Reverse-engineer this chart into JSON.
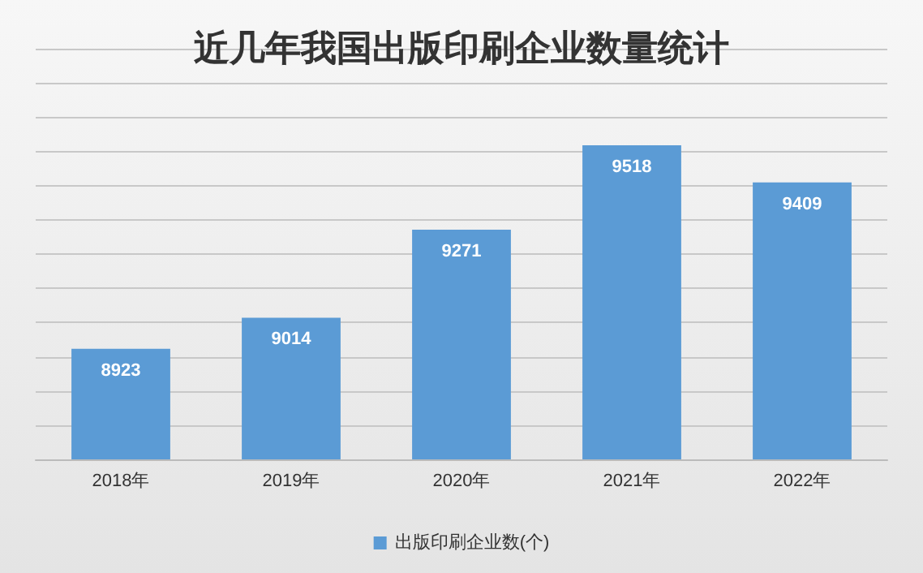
{
  "chart_data": {
    "type": "bar",
    "title": "近几年我国出版印刷企业数量统计",
    "categories": [
      "2018年",
      "2019年",
      "2020年",
      "2021年",
      "2022年"
    ],
    "series": [
      {
        "name": "出版印刷企业数(个)",
        "color": "#5b9bd5",
        "values": [
          8923,
          9014,
          9271,
          9518,
          9409
        ]
      }
    ],
    "data_labels": true,
    "ylim": [
      8600,
      9800
    ],
    "yticks": [
      {
        "value": 8600,
        "label": null
      },
      {
        "value": 8700,
        "label": null
      },
      {
        "value": 8800,
        "label": null
      },
      {
        "value": 8900,
        "label": null
      },
      {
        "value": 9000,
        "label": null
      },
      {
        "value": 9100,
        "label": null
      },
      {
        "value": 9200,
        "label": null
      },
      {
        "value": 9300,
        "label": null
      },
      {
        "value": 9400,
        "label": null
      },
      {
        "value": 9500,
        "label": null
      },
      {
        "value": 9600,
        "label": null
      },
      {
        "value": 9700,
        "label": null
      },
      {
        "value": 9800,
        "label": null
      }
    ],
    "grid": "y",
    "tick_labels": "x",
    "legend": "bottom"
  }
}
